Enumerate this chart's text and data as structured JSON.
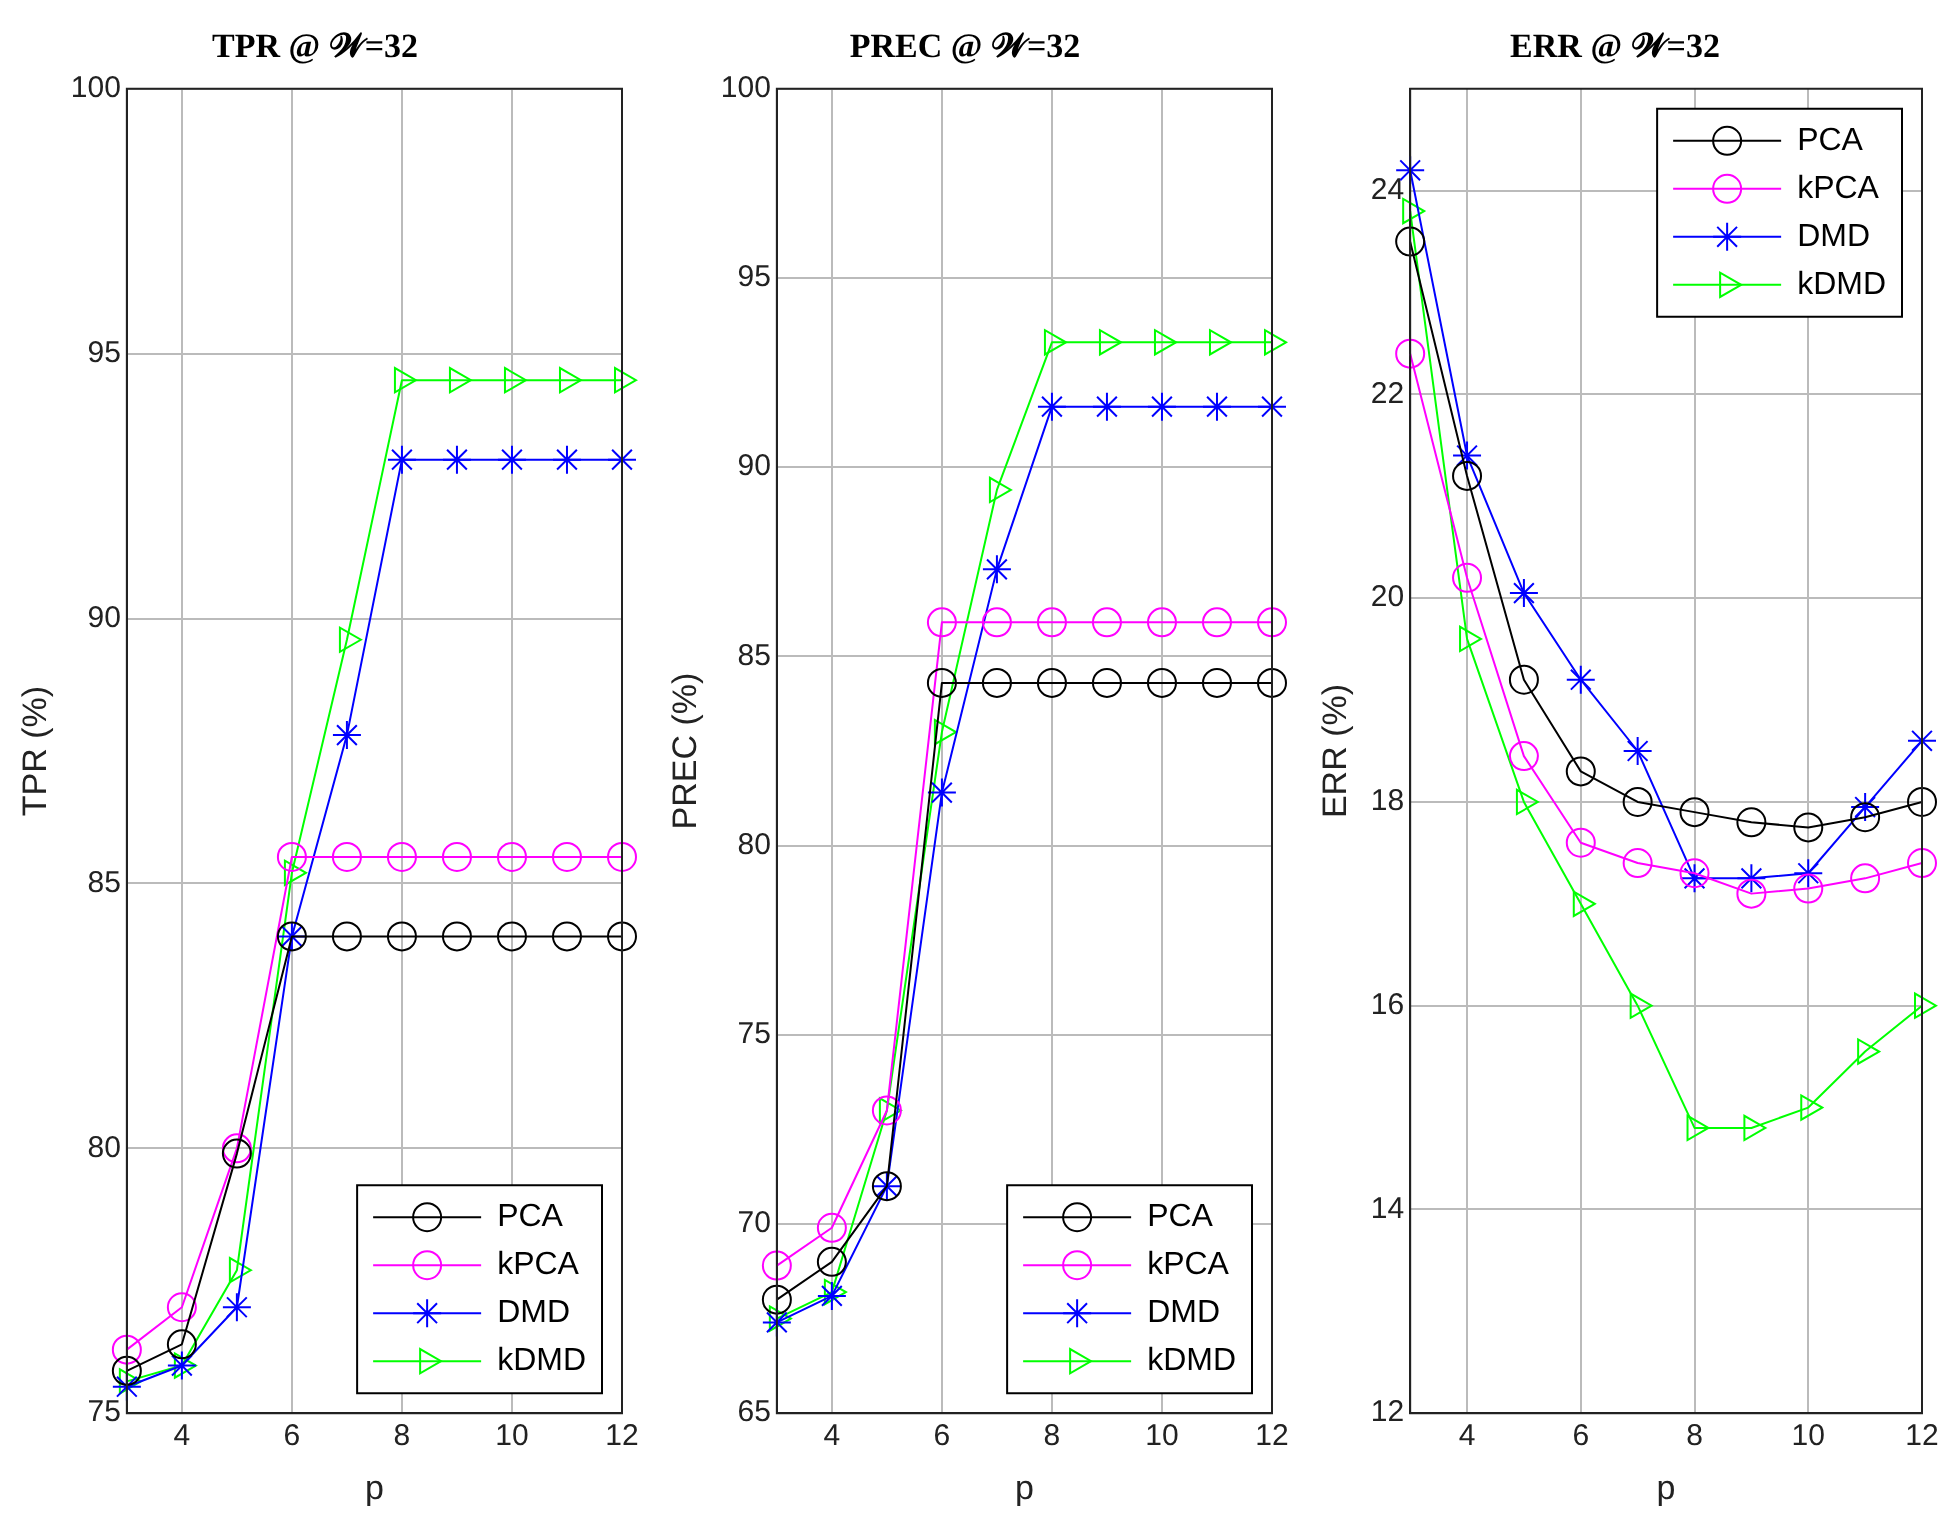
{
  "chart_data": [
    {
      "type": "line",
      "title": "TPR @ 𝒲=32",
      "xlabel": "p",
      "ylabel": "TPR (%)",
      "x": [
        3,
        4,
        5,
        6,
        7,
        8,
        9,
        10,
        11,
        12
      ],
      "xlim": [
        3,
        12
      ],
      "xticks": [
        4,
        6,
        8,
        10,
        12
      ],
      "ylim": [
        75,
        100
      ],
      "yticks": [
        75,
        80,
        85,
        90,
        95,
        100
      ],
      "grid": true,
      "legend": "bottom right",
      "series": [
        {
          "name": "PCA",
          "color": "#000000",
          "marker": "circle",
          "values": [
            75.8,
            76.3,
            79.9,
            84,
            84,
            84,
            84,
            84,
            84,
            84
          ]
        },
        {
          "name": "kPCA",
          "color": "#ff00ff",
          "marker": "circle",
          "values": [
            76.2,
            77,
            80,
            85.5,
            85.5,
            85.5,
            85.5,
            85.5,
            85.5,
            85.5
          ]
        },
        {
          "name": "DMD",
          "color": "#0000ff",
          "marker": "cross",
          "values": [
            75.5,
            75.9,
            77,
            84,
            87.8,
            93,
            93,
            93,
            93,
            93
          ]
        },
        {
          "name": "kDMD",
          "color": "#00ff00",
          "marker": "triangle",
          "values": [
            75.6,
            75.9,
            77.7,
            85.2,
            89.6,
            94.5,
            94.5,
            94.5,
            94.5,
            94.5
          ]
        }
      ]
    },
    {
      "type": "line",
      "title": "PREC @ 𝒲=32",
      "xlabel": "p",
      "ylabel": "PREC (%)",
      "x": [
        3,
        4,
        5,
        6,
        7,
        8,
        9,
        10,
        11,
        12
      ],
      "xlim": [
        3,
        12
      ],
      "xticks": [
        4,
        6,
        8,
        10,
        12
      ],
      "ylim": [
        65,
        100
      ],
      "yticks": [
        65,
        70,
        75,
        80,
        85,
        90,
        95,
        100
      ],
      "grid": true,
      "legend": "bottom right",
      "series": [
        {
          "name": "PCA",
          "color": "#000000",
          "marker": "circle",
          "values": [
            68,
            69,
            71,
            84.3,
            84.3,
            84.3,
            84.3,
            84.3,
            84.3,
            84.3
          ]
        },
        {
          "name": "kPCA",
          "color": "#ff00ff",
          "marker": "circle",
          "values": [
            68.9,
            69.9,
            73,
            85.9,
            85.9,
            85.9,
            85.9,
            85.9,
            85.9,
            85.9
          ]
        },
        {
          "name": "DMD",
          "color": "#0000ff",
          "marker": "cross",
          "values": [
            67.4,
            68.1,
            71,
            81.4,
            87.3,
            91.6,
            91.6,
            91.6,
            91.6,
            91.6
          ]
        },
        {
          "name": "kDMD",
          "color": "#00ff00",
          "marker": "triangle",
          "values": [
            67.5,
            68.2,
            73,
            83,
            89.4,
            93.3,
            93.3,
            93.3,
            93.3,
            93.3
          ]
        }
      ]
    },
    {
      "type": "line",
      "title": "ERR @ 𝒲=32",
      "xlabel": "p",
      "ylabel": "ERR (%)",
      "x": [
        3,
        4,
        5,
        6,
        7,
        8,
        9,
        10,
        11,
        12
      ],
      "xlim": [
        3,
        12
      ],
      "xticks": [
        4,
        6,
        8,
        10,
        12
      ],
      "ylim": [
        12,
        25
      ],
      "yticks": [
        12,
        14,
        16,
        18,
        20,
        22,
        24
      ],
      "grid": true,
      "legend": "top right",
      "series": [
        {
          "name": "PCA",
          "color": "#000000",
          "marker": "circle",
          "values": [
            23.5,
            21.2,
            19.2,
            18.3,
            18,
            17.9,
            17.8,
            17.75,
            17.85,
            18
          ]
        },
        {
          "name": "kPCA",
          "color": "#ff00ff",
          "marker": "circle",
          "values": [
            22.4,
            20.2,
            18.45,
            17.6,
            17.4,
            17.3,
            17.1,
            17.15,
            17.25,
            17.4
          ]
        },
        {
          "name": "DMD",
          "color": "#0000ff",
          "marker": "cross",
          "values": [
            24.2,
            21.4,
            20.05,
            19.2,
            18.5,
            17.25,
            17.25,
            17.3,
            17.95,
            18.6
          ]
        },
        {
          "name": "kDMD",
          "color": "#00ff00",
          "marker": "triangle",
          "values": [
            23.8,
            19.6,
            18,
            17,
            16,
            14.8,
            14.8,
            15,
            15.55,
            16
          ]
        }
      ]
    }
  ]
}
